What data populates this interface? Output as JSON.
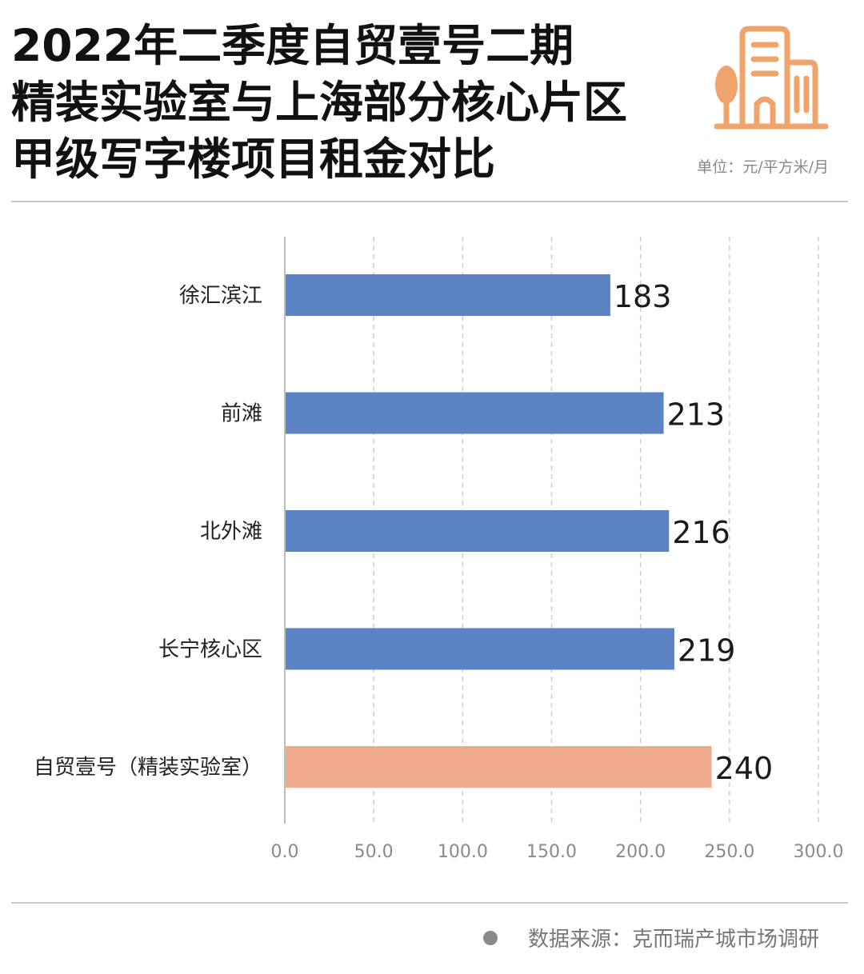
{
  "title_lines": [
    "2022年二季度自贸壹号二期",
    "精装实验室与上海部分核心片区",
    "甲级写字楼项目租金对比"
  ],
  "unit": "单位：元/平方米/月",
  "source": "数据来源：克而瑞产城市场调研",
  "icon": "building-icon",
  "colors": {
    "bar_default": "#5B82C3",
    "bar_highlight": "#EFA98D",
    "icon": "#F0A46C",
    "grid": "#cfcfcf",
    "axis": "#bdbdbd"
  },
  "chart_data": {
    "type": "bar",
    "orientation": "horizontal",
    "categories": [
      "徐汇滨江",
      "前滩",
      "北外滩",
      "长宁核心区",
      "自贸壹号（精装实验室）"
    ],
    "values": [
      183,
      213,
      216,
      219,
      240
    ],
    "value_labels": [
      "183",
      "213",
      "216",
      "219",
      "240"
    ],
    "highlight_index": 4,
    "xlim": [
      0,
      300
    ],
    "xticks": [
      0,
      50,
      100,
      150,
      200,
      250,
      300
    ],
    "xtick_labels": [
      "0.0",
      "50.0",
      "100.0",
      "150.0",
      "200.0",
      "250.0",
      "300.0"
    ],
    "grid": "vertical-dashed"
  }
}
